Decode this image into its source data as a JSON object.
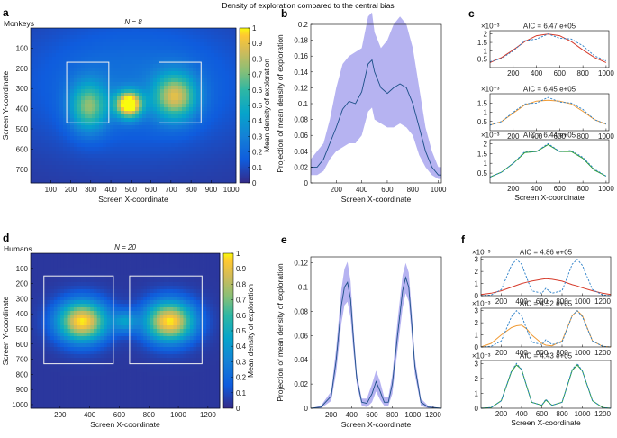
{
  "figure_title": "Density of exploration compared to the central bias",
  "colors": {
    "band": "#a9a6ee",
    "mean_line": "#1b4f87",
    "red_fit": "#d63b2b",
    "orange_fit": "#f09a34",
    "green_fit": "#2e9e37",
    "observed_dash": "#2a7fc8",
    "box": "#f2f2f2",
    "frame": "#000000"
  },
  "chart_data": [
    {
      "panel": "a",
      "type": "heatmap",
      "group": "Monkeys",
      "n_label": "N = 8",
      "xlabel": "Screen X-coordinate",
      "ylabel": "Screen Y-coordinate",
      "xlim": [
        0,
        1024
      ],
      "ylim": [
        0,
        768
      ],
      "xticks": [
        100,
        200,
        300,
        400,
        500,
        600,
        700,
        800,
        900,
        1000
      ],
      "yticks": [
        100,
        200,
        300,
        400,
        500,
        600,
        700
      ],
      "colorbar": {
        "label": "Mean density of exploration",
        "ticks": [
          0,
          0.1,
          0.2,
          0.3,
          0.4,
          0.5,
          0.6,
          0.7,
          0.8,
          0.9,
          1
        ]
      },
      "boxes": [
        {
          "x0": 180,
          "x1": 390,
          "y0": 170,
          "y1": 470
        },
        {
          "x0": 640,
          "x1": 850,
          "y0": 170,
          "y1": 470
        }
      ],
      "blobs": [
        {
          "x": 490,
          "y": 380,
          "sx": 45,
          "sy": 45,
          "w": 1.0
        },
        {
          "x": 290,
          "y": 390,
          "sx": 65,
          "sy": 85,
          "w": 0.55
        },
        {
          "x": 720,
          "y": 340,
          "sx": 75,
          "sy": 80,
          "w": 0.68
        },
        {
          "x": 520,
          "y": 280,
          "sx": 420,
          "sy": 240,
          "w": 0.2
        }
      ]
    },
    {
      "panel": "b",
      "type": "line",
      "xlabel": "Screen X-coordinate",
      "ylabel": "Projection of mean density of exploration",
      "xlim": [
        0,
        1024
      ],
      "ylim": [
        0,
        0.2
      ],
      "xticks": [
        200,
        400,
        600,
        800,
        1000
      ],
      "yticks": [
        0,
        0.02,
        0.04,
        0.06,
        0.08,
        0.1,
        0.12,
        0.14,
        0.16,
        0.18,
        0.2
      ],
      "ytick_labels": [
        "0",
        "0.02",
        "0.04",
        "0.06",
        "0.08",
        "0.1",
        "0.12",
        "0.14",
        "0.16",
        "0.18",
        "0.2"
      ],
      "x": [
        0,
        50,
        100,
        150,
        200,
        250,
        300,
        350,
        400,
        450,
        480,
        500,
        550,
        600,
        650,
        700,
        750,
        800,
        850,
        900,
        950,
        1000,
        1024
      ],
      "mean": [
        0.02,
        0.02,
        0.03,
        0.05,
        0.07,
        0.093,
        0.103,
        0.1,
        0.115,
        0.15,
        0.155,
        0.14,
        0.12,
        0.113,
        0.12,
        0.125,
        0.12,
        0.1,
        0.07,
        0.04,
        0.02,
        0.01,
        0.01
      ],
      "upper": [
        0.03,
        0.04,
        0.05,
        0.08,
        0.12,
        0.15,
        0.16,
        0.165,
        0.17,
        0.21,
        0.215,
        0.19,
        0.17,
        0.18,
        0.2,
        0.21,
        0.2,
        0.17,
        0.12,
        0.07,
        0.04,
        0.02,
        0.02
      ],
      "lower": [
        0.01,
        0.01,
        0.015,
        0.03,
        0.04,
        0.045,
        0.05,
        0.05,
        0.06,
        0.09,
        0.095,
        0.08,
        0.075,
        0.07,
        0.07,
        0.075,
        0.07,
        0.06,
        0.035,
        0.02,
        0.01,
        0.005,
        0.005
      ]
    },
    {
      "panel": "c1",
      "type": "line",
      "aic": "AIC = 6.47 e+05",
      "exp": "×10⁻³",
      "xlim": [
        0,
        1024
      ],
      "ylim": [
        0,
        2.2
      ],
      "xticks": [
        200,
        400,
        600,
        800,
        1000
      ],
      "yticks": [
        0.5,
        1,
        1.5,
        2
      ],
      "ytick_labels": [
        "0.5",
        "1",
        "1.5",
        "2"
      ],
      "x": [
        0,
        100,
        200,
        300,
        400,
        500,
        600,
        700,
        800,
        900,
        1000
      ],
      "observed": [
        0.35,
        0.55,
        1.0,
        1.6,
        1.7,
        2.0,
        1.75,
        1.7,
        1.3,
        0.7,
        0.4
      ],
      "fit": [
        0.3,
        0.6,
        1.05,
        1.55,
        1.9,
        2.0,
        1.9,
        1.55,
        1.05,
        0.6,
        0.3
      ],
      "fit_color": "red_fit"
    },
    {
      "panel": "c2",
      "type": "line",
      "aic": "AIC = 6.45 e+05",
      "exp": "×10⁻³",
      "xlim": [
        0,
        1024
      ],
      "ylim": [
        0,
        2.0
      ],
      "xticks": [
        200,
        400,
        600,
        800,
        1000
      ],
      "yticks": [
        0.5,
        1,
        1.5
      ],
      "ytick_labels": [
        "0.5",
        "1",
        "1.5"
      ],
      "x": [
        0,
        100,
        200,
        300,
        400,
        500,
        600,
        700,
        800,
        900,
        1000
      ],
      "observed": [
        0.3,
        0.5,
        1.0,
        1.45,
        1.5,
        1.8,
        1.55,
        1.5,
        1.15,
        0.6,
        0.35
      ],
      "fit": [
        0.3,
        0.5,
        0.95,
        1.4,
        1.6,
        1.65,
        1.6,
        1.45,
        1.05,
        0.6,
        0.35
      ],
      "fit_color": "orange_fit"
    },
    {
      "panel": "c3",
      "type": "line",
      "aic": "AIC = 6.44 e+05",
      "exp": "×10⁻³",
      "xlim": [
        0,
        1024
      ],
      "ylim": [
        0,
        2.2
      ],
      "xticks": [
        200,
        400,
        600,
        800,
        1000
      ],
      "yticks": [
        0.5,
        1,
        1.5,
        2
      ],
      "ytick_labels": [
        "0.5",
        "1",
        "1.5",
        "2"
      ],
      "x": [
        0,
        100,
        200,
        300,
        400,
        500,
        600,
        700,
        800,
        900,
        1000
      ],
      "observed": [
        0.3,
        0.55,
        1.0,
        1.6,
        1.6,
        2.0,
        1.6,
        1.65,
        1.3,
        0.7,
        0.35
      ],
      "fit": [
        0.3,
        0.55,
        1.0,
        1.55,
        1.6,
        1.95,
        1.6,
        1.6,
        1.25,
        0.65,
        0.35
      ],
      "fit_color": "green_fit"
    },
    {
      "panel": "d",
      "type": "heatmap",
      "group": "Humans",
      "n_label": "N = 20",
      "xlabel": "Screen X-coordinate",
      "ylabel": "Screen Y-coordinate",
      "xlim": [
        0,
        1280
      ],
      "ylim": [
        0,
        1024
      ],
      "xticks": [
        200,
        400,
        600,
        800,
        1000,
        1200
      ],
      "yticks": [
        100,
        200,
        300,
        400,
        500,
        600,
        700,
        800,
        900,
        1000
      ],
      "colorbar": {
        "label": "Mean density of exploration",
        "ticks": [
          0,
          0.1,
          0.2,
          0.3,
          0.4,
          0.5,
          0.6,
          0.7,
          0.8,
          0.9,
          1
        ]
      },
      "boxes": [
        {
          "x0": 90,
          "x1": 560,
          "y0": 150,
          "y1": 730
        },
        {
          "x0": 670,
          "x1": 1160,
          "y0": 150,
          "y1": 730
        }
      ],
      "blobs": [
        {
          "x": 350,
          "y": 450,
          "sx": 120,
          "sy": 95,
          "w": 0.95
        },
        {
          "x": 940,
          "y": 450,
          "sx": 120,
          "sy": 95,
          "w": 0.95
        },
        {
          "x": 640,
          "y": 450,
          "sx": 55,
          "sy": 50,
          "w": 0.32
        }
      ]
    },
    {
      "panel": "e",
      "type": "line",
      "xlabel": "Screen X-coordinate",
      "ylabel": "Projection of mean density of exploration",
      "xlim": [
        0,
        1280
      ],
      "ylim": [
        0,
        0.125
      ],
      "xticks": [
        200,
        400,
        600,
        800,
        1000,
        1200
      ],
      "yticks": [
        0,
        0.02,
        0.04,
        0.06,
        0.08,
        0.1,
        0.12
      ],
      "ytick_labels": [
        "0",
        "0.02",
        "0.04",
        "0.06",
        "0.08",
        "0.1",
        "0.12"
      ],
      "x": [
        0,
        100,
        200,
        250,
        300,
        330,
        360,
        390,
        420,
        450,
        500,
        550,
        600,
        640,
        680,
        720,
        760,
        800,
        850,
        900,
        930,
        960,
        990,
        1020,
        1080,
        1150,
        1280
      ],
      "mean": [
        0,
        0.001,
        0.01,
        0.04,
        0.085,
        0.1,
        0.104,
        0.09,
        0.055,
        0.025,
        0.005,
        0.004,
        0.012,
        0.022,
        0.014,
        0.005,
        0.005,
        0.02,
        0.06,
        0.097,
        0.108,
        0.1,
        0.07,
        0.035,
        0.005,
        0.001,
        0
      ],
      "upper": [
        0,
        0.002,
        0.014,
        0.05,
        0.098,
        0.115,
        0.121,
        0.105,
        0.065,
        0.03,
        0.008,
        0.008,
        0.02,
        0.031,
        0.022,
        0.009,
        0.009,
        0.028,
        0.072,
        0.11,
        0.12,
        0.112,
        0.08,
        0.042,
        0.008,
        0.002,
        0
      ],
      "lower": [
        0,
        0,
        0.006,
        0.03,
        0.07,
        0.085,
        0.088,
        0.075,
        0.045,
        0.02,
        0.002,
        0.001,
        0.005,
        0.014,
        0.007,
        0.002,
        0.002,
        0.012,
        0.048,
        0.083,
        0.095,
        0.088,
        0.06,
        0.028,
        0.002,
        0,
        0
      ]
    },
    {
      "panel": "f1",
      "type": "line",
      "aic": "AIC = 4.86 e+05",
      "exp": "×10⁻³",
      "xlim": [
        0,
        1280
      ],
      "ylim": [
        0,
        3.2
      ],
      "xticks": [
        200,
        400,
        600,
        800,
        1000,
        1200
      ],
      "yticks": [
        0,
        1,
        2,
        3
      ],
      "ytick_labels": [
        "0",
        "1",
        "2",
        "3"
      ],
      "x": [
        0,
        100,
        200,
        300,
        350,
        400,
        450,
        500,
        600,
        640,
        700,
        800,
        900,
        950,
        1000,
        1100,
        1200,
        1280
      ],
      "observed": [
        0,
        0.05,
        0.5,
        2.5,
        3.0,
        2.6,
        1.5,
        0.4,
        0.2,
        0.6,
        0.2,
        0.4,
        2.6,
        3.0,
        2.5,
        0.5,
        0.05,
        0
      ],
      "fit": [
        0.1,
        0.2,
        0.4,
        0.7,
        0.85,
        1.0,
        1.1,
        1.2,
        1.35,
        1.4,
        1.35,
        1.2,
        0.9,
        0.8,
        0.65,
        0.4,
        0.2,
        0.1
      ],
      "fit_color": "red_fit"
    },
    {
      "panel": "f2",
      "type": "line",
      "aic": "AIC = 4.52 e+05",
      "exp": "×10⁻³",
      "xlim": [
        0,
        1280
      ],
      "ylim": [
        0,
        3.2
      ],
      "xticks": [
        200,
        400,
        600,
        800,
        1000,
        1200
      ],
      "yticks": [
        0,
        1,
        2,
        3
      ],
      "ytick_labels": [
        "0",
        "1",
        "2",
        "3"
      ],
      "x": [
        0,
        100,
        200,
        300,
        350,
        400,
        450,
        500,
        600,
        640,
        700,
        800,
        900,
        950,
        1000,
        1100,
        1200,
        1280
      ],
      "observed": [
        0,
        0.05,
        0.5,
        2.5,
        3.0,
        2.6,
        1.5,
        0.4,
        0.2,
        0.6,
        0.2,
        0.4,
        2.6,
        3.0,
        2.5,
        0.5,
        0.05,
        0
      ],
      "fit": [
        0,
        0.3,
        1.0,
        1.6,
        1.75,
        1.8,
        1.5,
        1.0,
        0.3,
        0.15,
        0.1,
        0.5,
        2.6,
        3.0,
        2.6,
        0.5,
        0.05,
        0
      ],
      "fit_color": "orange_fit"
    },
    {
      "panel": "f3",
      "type": "line",
      "aic": "AIC = 4.43 e+05",
      "exp": "×10⁻³",
      "xlim": [
        0,
        1280
      ],
      "ylim": [
        0,
        3.2
      ],
      "xticks": [
        200,
        400,
        600,
        800,
        1000,
        1200
      ],
      "yticks": [
        0,
        1,
        2,
        3
      ],
      "ytick_labels": [
        "0",
        "1",
        "2",
        "3"
      ],
      "x": [
        0,
        100,
        200,
        300,
        350,
        400,
        450,
        500,
        600,
        640,
        700,
        800,
        900,
        950,
        1000,
        1100,
        1200,
        1280
      ],
      "observed": [
        0,
        0.05,
        0.5,
        2.5,
        3.0,
        2.6,
        1.5,
        0.4,
        0.2,
        0.6,
        0.2,
        0.4,
        2.6,
        3.0,
        2.5,
        0.5,
        0.05,
        0
      ],
      "fit": [
        0,
        0.05,
        0.5,
        2.45,
        2.9,
        2.6,
        1.5,
        0.4,
        0.2,
        0.55,
        0.2,
        0.4,
        2.55,
        2.9,
        2.5,
        0.5,
        0.05,
        0
      ],
      "fit_color": "green_fit"
    }
  ]
}
